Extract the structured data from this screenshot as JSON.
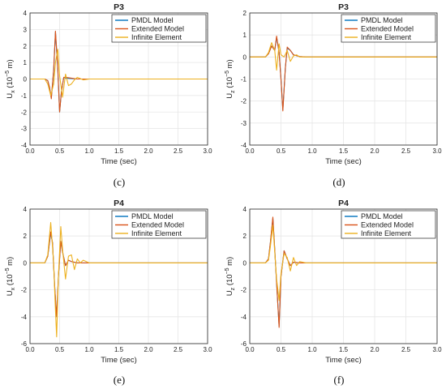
{
  "chart_data": [
    {
      "type": "line",
      "panel_label": "(c)",
      "title": "P3",
      "xlabel": "Time (sec)",
      "ylabel_main": "U",
      "ylabel_sub": "x",
      "ylabel_unit": " (10",
      "ylabel_exp": "−5",
      "ylabel_tail": " m)",
      "xlim": [
        0,
        3
      ],
      "ylim": [
        -4,
        4
      ],
      "xticks": [
        "0.0",
        "0.5",
        "1.0",
        "1.5",
        "2.0",
        "2.5",
        "3.0"
      ],
      "yticks": [
        "-4",
        "-3",
        "-2",
        "-1",
        "0",
        "1",
        "2",
        "3",
        "4"
      ],
      "grid": true,
      "legend_position": "top-right",
      "series": [
        {
          "name": "PMDL Model",
          "color": "#0072BD",
          "x": [
            0,
            0.25,
            0.3,
            0.33,
            0.36,
            0.4,
            0.43,
            0.47,
            0.5,
            0.53,
            0.57,
            0.6,
            0.7,
            0.8,
            3.0
          ],
          "y": [
            0,
            0,
            -0.1,
            -0.5,
            -1.15,
            0.5,
            2.85,
            0.5,
            -2.0,
            -0.8,
            0.1,
            0.05,
            0.03,
            0,
            0
          ]
        },
        {
          "name": "Extended Model",
          "color": "#D95319",
          "x": [
            0,
            0.25,
            0.3,
            0.33,
            0.36,
            0.4,
            0.43,
            0.47,
            0.5,
            0.53,
            0.57,
            0.6,
            0.7,
            0.8,
            3.0
          ],
          "y": [
            0,
            0,
            -0.1,
            -0.5,
            -1.2,
            0.6,
            2.9,
            0.6,
            -2.0,
            -0.8,
            0.1,
            0.1,
            0.05,
            0,
            0
          ]
        },
        {
          "name": "Infinite Element",
          "color": "#EDB120",
          "x": [
            0,
            0.25,
            0.3,
            0.35,
            0.4,
            0.43,
            0.47,
            0.5,
            0.55,
            0.6,
            0.65,
            0.7,
            0.75,
            0.8,
            0.9,
            1.0,
            3.0
          ],
          "y": [
            0,
            0,
            -0.3,
            -1.0,
            -0.3,
            1.0,
            1.8,
            0.2,
            -1.1,
            0.3,
            -0.4,
            -0.3,
            -0.05,
            0.1,
            -0.05,
            0,
            0
          ]
        }
      ]
    },
    {
      "type": "line",
      "panel_label": "(d)",
      "title": "P3",
      "xlabel": "Time (sec)",
      "ylabel_main": "U",
      "ylabel_sub": "z",
      "ylabel_unit": " (10",
      "ylabel_exp": "−5",
      "ylabel_tail": " m)",
      "xlim": [
        0,
        3
      ],
      "ylim": [
        -4,
        2
      ],
      "xticks": [
        "0.0",
        "0.5",
        "1.0",
        "1.5",
        "2.0",
        "2.5",
        "3.0"
      ],
      "yticks": [
        "-4",
        "-3",
        "-2",
        "-1",
        "0",
        "1",
        "2"
      ],
      "grid": true,
      "legend_position": "top-right",
      "series": [
        {
          "name": "PMDL Model",
          "color": "#0072BD",
          "x": [
            0,
            0.25,
            0.3,
            0.35,
            0.4,
            0.43,
            0.47,
            0.5,
            0.53,
            0.57,
            0.6,
            0.65,
            0.7,
            0.8,
            0.9,
            3.0
          ],
          "y": [
            0,
            0,
            0.15,
            0.5,
            0.3,
            0.9,
            0.2,
            -1.0,
            -2.4,
            -0.5,
            0.4,
            0.3,
            0.1,
            0.02,
            0,
            0
          ]
        },
        {
          "name": "Extended Model",
          "color": "#D95319",
          "x": [
            0,
            0.25,
            0.3,
            0.35,
            0.4,
            0.43,
            0.47,
            0.5,
            0.53,
            0.57,
            0.6,
            0.65,
            0.7,
            0.8,
            0.9,
            3.0
          ],
          "y": [
            0,
            0,
            0.15,
            0.5,
            0.3,
            0.95,
            0.2,
            -1.0,
            -2.45,
            -0.5,
            0.45,
            0.3,
            0.1,
            0.02,
            0,
            0
          ]
        },
        {
          "name": "Infinite Element",
          "color": "#EDB120",
          "x": [
            0,
            0.25,
            0.3,
            0.35,
            0.4,
            0.43,
            0.47,
            0.5,
            0.55,
            0.6,
            0.65,
            0.7,
            0.75,
            0.8,
            0.9,
            3.0
          ],
          "y": [
            0,
            0,
            0.2,
            0.65,
            0.3,
            -0.6,
            0.6,
            0.1,
            0.0,
            0.3,
            -0.2,
            0.05,
            0.1,
            0.0,
            0,
            0
          ]
        }
      ]
    },
    {
      "type": "line",
      "panel_label": "(e)",
      "title": "P4",
      "xlabel": "Time (sec)",
      "ylabel_main": "U",
      "ylabel_sub": "x",
      "ylabel_unit": " (10",
      "ylabel_exp": "−5",
      "ylabel_tail": " m)",
      "xlim": [
        0,
        3
      ],
      "ylim": [
        -6,
        4
      ],
      "xticks": [
        "0.0",
        "0.5",
        "1.0",
        "1.5",
        "2.0",
        "2.5",
        "3.0"
      ],
      "yticks": [
        "-6",
        "-4",
        "-2",
        "0",
        "2",
        "4"
      ],
      "grid": true,
      "legend_position": "top-right",
      "series": [
        {
          "name": "PMDL Model",
          "color": "#0072BD",
          "x": [
            0,
            0.25,
            0.3,
            0.35,
            0.38,
            0.42,
            0.45,
            0.48,
            0.52,
            0.55,
            0.6,
            0.65,
            0.7,
            0.8,
            0.9,
            3.0
          ],
          "y": [
            0,
            0,
            0.5,
            2.2,
            1.5,
            -2.0,
            -4.0,
            -1.0,
            1.6,
            0.8,
            -0.2,
            0.2,
            0.1,
            0,
            0,
            0
          ]
        },
        {
          "name": "Extended Model",
          "color": "#D95319",
          "x": [
            0,
            0.25,
            0.3,
            0.35,
            0.38,
            0.42,
            0.45,
            0.48,
            0.52,
            0.55,
            0.6,
            0.65,
            0.7,
            0.8,
            0.9,
            3.0
          ],
          "y": [
            0,
            0,
            0.5,
            2.3,
            1.5,
            -2.0,
            -4.0,
            -1.0,
            1.6,
            0.8,
            -0.2,
            0.2,
            0.1,
            0,
            0,
            0
          ]
        },
        {
          "name": "Infinite Element",
          "color": "#EDB120",
          "x": [
            0,
            0.25,
            0.3,
            0.35,
            0.4,
            0.42,
            0.45,
            0.48,
            0.52,
            0.55,
            0.6,
            0.65,
            0.7,
            0.75,
            0.8,
            0.85,
            0.9,
            1.0,
            3.0
          ],
          "y": [
            0,
            0,
            0.6,
            3.0,
            0.0,
            -2.5,
            -5.5,
            -1.0,
            2.7,
            1.0,
            -1.2,
            0.5,
            0.6,
            -0.5,
            0.3,
            0.0,
            0.2,
            0,
            0
          ]
        }
      ]
    },
    {
      "type": "line",
      "panel_label": "(f)",
      "title": "P4",
      "xlabel": "Time (sec)",
      "ylabel_main": "U",
      "ylabel_sub": "z",
      "ylabel_unit": " (10",
      "ylabel_exp": "−5",
      "ylabel_tail": " m)",
      "xlim": [
        0,
        3
      ],
      "ylim": [
        -6,
        4
      ],
      "xticks": [
        "0.0",
        "0.5",
        "1.0",
        "1.5",
        "2.0",
        "2.5",
        "3.0"
      ],
      "yticks": [
        "-6",
        "-4",
        "-2",
        "0",
        "2",
        "4"
      ],
      "grid": true,
      "legend_position": "top-right",
      "series": [
        {
          "name": "PMDL Model",
          "color": "#0072BD",
          "x": [
            0,
            0.25,
            0.3,
            0.33,
            0.37,
            0.4,
            0.43,
            0.47,
            0.5,
            0.55,
            0.6,
            0.65,
            0.7,
            0.8,
            3.0
          ],
          "y": [
            0,
            0,
            0.3,
            1.5,
            3.3,
            1.0,
            -1.5,
            -4.7,
            -1.0,
            0.9,
            0.3,
            -0.2,
            0.05,
            0,
            0
          ]
        },
        {
          "name": "Extended Model",
          "color": "#D95319",
          "x": [
            0,
            0.25,
            0.3,
            0.33,
            0.37,
            0.4,
            0.43,
            0.47,
            0.5,
            0.55,
            0.6,
            0.65,
            0.7,
            0.8,
            3.0
          ],
          "y": [
            0,
            0,
            0.3,
            1.5,
            3.4,
            1.0,
            -1.5,
            -4.8,
            -1.0,
            0.9,
            0.3,
            -0.2,
            0.05,
            0,
            0
          ]
        },
        {
          "name": "Infinite Element",
          "color": "#EDB120",
          "x": [
            0,
            0.25,
            0.3,
            0.33,
            0.37,
            0.4,
            0.43,
            0.47,
            0.5,
            0.55,
            0.6,
            0.65,
            0.7,
            0.75,
            0.8,
            0.9,
            1.0,
            3.0
          ],
          "y": [
            0,
            0,
            0.2,
            1.2,
            2.8,
            0.8,
            -1.2,
            -2.8,
            -0.8,
            0.7,
            0.4,
            -0.6,
            0.4,
            -0.2,
            0.1,
            0.0,
            0,
            0
          ]
        }
      ]
    }
  ]
}
